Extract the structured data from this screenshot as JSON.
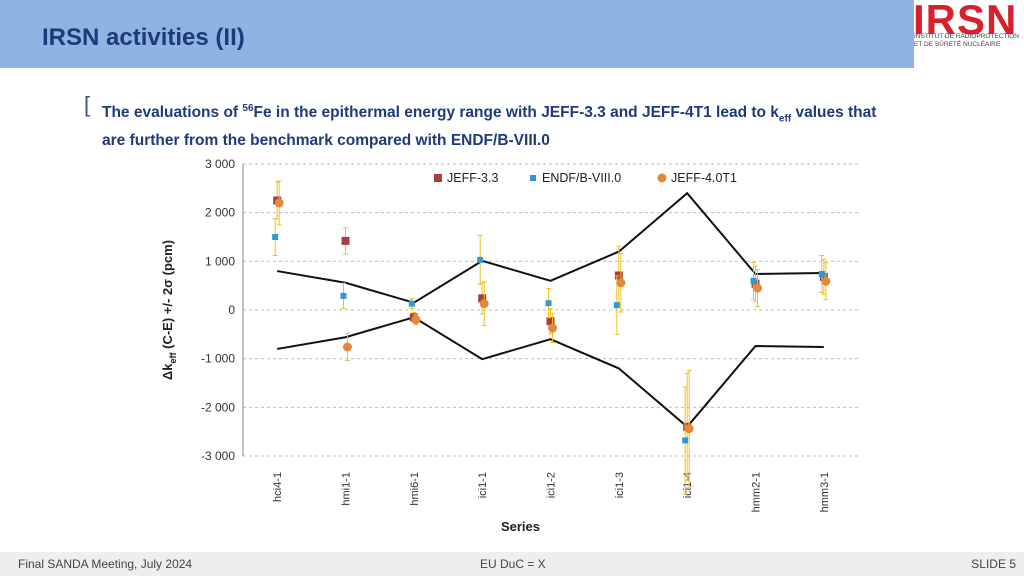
{
  "header": {
    "title": "IRSN activities (II)"
  },
  "logo": {
    "mark": "IRSN",
    "line1": "INSTITUT DE RADIOPROTECTION",
    "line2": "ET DE SÛRETÉ NUCLÉAIRE"
  },
  "bullet": {
    "part1": "The evaluations of ",
    "sup": "56",
    "part2": "Fe in the epithermal energy range with JEFF-3.3 and JEFF-4T1 lead to k",
    "sub": "eff",
    "part3": " values that are further from the benchmark compared with ENDF/B-VIII.0"
  },
  "colors": {
    "header_bg": "#8eb4e3",
    "title": "#1f3a7a",
    "jeff33": "#a5403d",
    "endf": "#2e9ad0",
    "jeff40": "#e08a3c",
    "errorbar": "#f0c020"
  },
  "chart_data": {
    "type": "scatter",
    "title": "",
    "xlabel": "Series",
    "ylabel_main": "Δk",
    "ylabel_sub": "eff",
    "ylabel_rest": " (C-E) +/- 2σ (pcm)",
    "ylim": [
      -3000,
      3000
    ],
    "yticks": [
      3000,
      2000,
      1000,
      0,
      -1000,
      -2000,
      -3000
    ],
    "ytick_labels": [
      "3 000",
      "2 000",
      "1 000",
      "0",
      "-1 000",
      "-2 000",
      "-3 000"
    ],
    "categories": [
      "hci4-1",
      "hmi1-1",
      "hmi6-1",
      "ici1-1",
      "ici1-2",
      "ici1-3",
      "ici1-4",
      "hmm2-1",
      "hmm3-1"
    ],
    "legend_position": "top",
    "series": [
      {
        "name": "JEFF-3.3",
        "marker": "square",
        "color": "#a5403d",
        "values": [
          2250,
          1420,
          -150,
          240,
          -230,
          710,
          -2400,
          540,
          680
        ],
        "errors": [
          380,
          270,
          100,
          320,
          260,
          600,
          1100,
          360,
          360
        ]
      },
      {
        "name": "ENDF/B-VIII.0",
        "marker": "square-small",
        "color": "#2e9ad0",
        "values": [
          1500,
          290,
          130,
          1030,
          140,
          100,
          -2680,
          600,
          740
        ],
        "errors": [
          380,
          260,
          100,
          500,
          300,
          600,
          1100,
          380,
          380
        ]
      },
      {
        "name": "JEFF-4.0T1",
        "marker": "circle",
        "color": "#e08a3c",
        "values": [
          2200,
          -760,
          -200,
          130,
          -370,
          560,
          -2440,
          450,
          590
        ],
        "errors": [
          450,
          280,
          100,
          450,
          300,
          600,
          1200,
          380,
          380
        ]
      }
    ],
    "envelope": {
      "upper": [
        800,
        560,
        150,
        1010,
        600,
        1200,
        2400,
        740,
        760
      ],
      "lower": [
        -800,
        -560,
        -150,
        -1010,
        -600,
        -1200,
        -2400,
        -740,
        -760
      ]
    }
  },
  "footer": {
    "left": "Final SANDA Meeting, July 2024",
    "mid": "EU DuC = X",
    "right": "SLIDE 5"
  }
}
